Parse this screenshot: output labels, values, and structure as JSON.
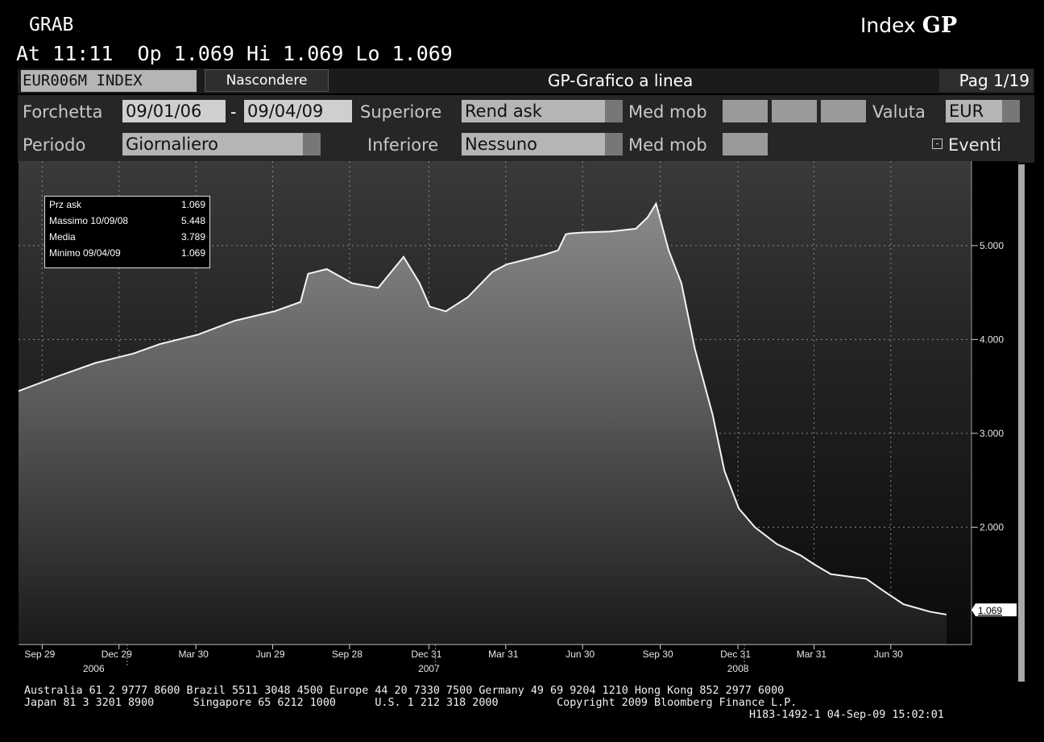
{
  "header": {
    "function": "GRAB",
    "index_label": "Index",
    "index_code": "GP",
    "quote": "At 11:11  Op 1.069 Hi 1.069 Lo 1.069"
  },
  "toolbar": {
    "ticker": "EUR006M INDEX",
    "hide_button": "Nascondere",
    "title": "GP-Grafico a linea",
    "page": "Pag 1/19"
  },
  "settings": {
    "range_label": "Forchetta",
    "range_start": "09/01/06",
    "range_sep": "-",
    "range_end": "09/04/09",
    "upper_label": "Superiore",
    "upper_value": "Rend ask",
    "ma_label_1": "Med mob",
    "currency_label": "Valuta",
    "currency_value": "EUR",
    "period_label": "Periodo",
    "period_value": "Giornaliero",
    "lower_label": "Inferiore",
    "lower_value": "Nessuno",
    "ma_label_2": "Med mob",
    "events_label": "Eventi"
  },
  "info": {
    "rows": [
      {
        "k": "Prz ask",
        "v": "1.069"
      },
      {
        "k": "Massimo  10/09/08",
        "v": "5.448"
      },
      {
        "k": "Media",
        "v": "3.789"
      },
      {
        "k": "Minimo  09/04/09",
        "v": "1.069"
      }
    ]
  },
  "chart_data": {
    "type": "area",
    "series": [
      {
        "x": [
          "2006-09-01",
          "2006-10-15",
          "2006-12-01",
          "2007-01-15",
          "2007-02-15",
          "2007-04-01",
          "2007-05-15",
          "2007-07-01",
          "2007-08-01",
          "2007-08-10",
          "2007-09-01",
          "2007-10-01",
          "2007-11-01",
          "2007-12-01",
          "2007-12-20",
          "2008-01-01",
          "2008-01-20",
          "2008-02-15",
          "2008-03-15",
          "2008-04-01",
          "2008-05-15",
          "2008-06-01",
          "2008-06-10",
          "2008-06-15",
          "2008-07-01",
          "2008-08-01",
          "2008-09-01",
          "2008-09-15",
          "2008-09-25",
          "2008-10-10",
          "2008-10-25",
          "2008-11-10",
          "2008-12-01",
          "2008-12-15",
          "2009-01-01",
          "2009-01-20",
          "2009-02-15",
          "2009-03-15",
          "2009-04-01",
          "2009-04-20",
          "2009-05-15",
          "2009-06-01",
          "2009-06-20",
          "2009-07-15",
          "2009-08-15",
          "2009-09-04"
        ],
        "y": [
          3.45,
          3.6,
          3.75,
          3.85,
          3.95,
          4.05,
          4.2,
          4.3,
          4.4,
          4.7,
          4.75,
          4.6,
          4.55,
          4.88,
          4.6,
          4.35,
          4.3,
          4.45,
          4.72,
          4.8,
          4.9,
          4.95,
          5.12,
          5.13,
          5.14,
          5.15,
          5.18,
          5.3,
          5.448,
          4.95,
          4.6,
          3.9,
          3.2,
          2.6,
          2.2,
          2.0,
          1.82,
          1.7,
          1.6,
          1.5,
          1.47,
          1.45,
          1.33,
          1.18,
          1.1,
          1.069
        ]
      }
    ],
    "ylim": [
      0.75,
      5.9
    ],
    "yticks": [
      "5.000",
      "4.000",
      "3.000",
      "2.000"
    ],
    "last_value_label": "1.069",
    "xticks": [
      "Sep 29",
      "Dec 29",
      "Mar 30",
      "Jun 29",
      "Sep 28",
      "Dec 31",
      "Mar 31",
      "Jun 30",
      "Sep 30",
      "Dec 31",
      "Mar 31",
      "Jun 30"
    ],
    "year_labels": [
      "2006",
      "2007",
      "2008"
    ]
  },
  "footer": {
    "line1": "Australia 61 2 9777 8600 Brazil 5511 3048 4500 Europe 44 20 7330 7500 Germany 49 69 9204 1210 Hong Kong 852 2977 6000",
    "line2": "Japan 81 3 3201 8900      Singapore 65 6212 1000      U.S. 1 212 318 2000         Copyright 2009 Bloomberg Finance L.P.",
    "line3": "H183-1492-1 04-Sep-09 15:02:01"
  }
}
